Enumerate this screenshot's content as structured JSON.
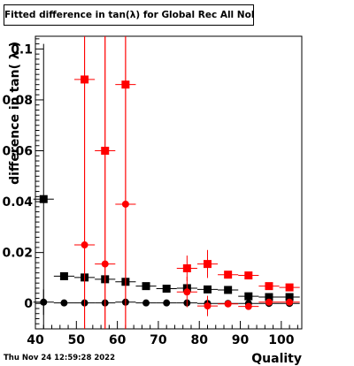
{
  "chart_data": {
    "type": "scatter",
    "title": "Fitted difference in tan(λ) for Global Rec All NoHits",
    "xlabel": "Quality",
    "ylabel": "difference in tan( λ )",
    "xlim": [
      40,
      105
    ],
    "ylim": [
      -0.01,
      0.105
    ],
    "x_ticks": [
      "40",
      "50",
      "60",
      "70",
      "80",
      "90",
      "100"
    ],
    "y_ticks": [
      "0",
      "0.02",
      "0.04",
      "0.06",
      "0.08",
      "0.1"
    ],
    "grid": false,
    "legend": "none",
    "series": [
      {
        "color": "#000000",
        "marker": "square",
        "x": [
          42,
          47,
          52,
          57,
          62,
          67,
          72,
          77,
          82,
          87,
          92,
          97,
          102
        ],
        "y": [
          0.041,
          0.0107,
          0.0102,
          0.0095,
          0.0085,
          0.0068,
          0.0058,
          0.006,
          0.0055,
          0.0053,
          0.0028,
          0.0025,
          0.0025
        ],
        "yerr": [
          0.061,
          0.0,
          0.0,
          0.0,
          0.0,
          0.0,
          0.0,
          0.0,
          0.0,
          0.0,
          0.0,
          0.0,
          0.0
        ]
      },
      {
        "color": "#000000",
        "marker": "circle",
        "x": [
          42,
          47,
          52,
          57,
          62,
          67,
          72,
          77,
          82,
          87,
          92,
          97,
          102
        ],
        "y": [
          0.0005,
          0.0002,
          0.0002,
          0.0002,
          0.0005,
          0.0002,
          0.0002,
          0.0002,
          0.0,
          0.0,
          0.0,
          0.0,
          0.0
        ],
        "yerr": [
          0.005,
          0.0,
          0.0,
          0.0,
          0.0,
          0.0,
          0.0,
          0.0,
          0.0,
          0.0,
          0.0,
          0.0,
          0.0
        ]
      },
      {
        "color": "#ff0000",
        "marker": "square",
        "x": [
          52,
          57,
          62,
          77,
          82,
          87,
          92,
          97,
          102
        ],
        "y": [
          0.088,
          0.06,
          0.086,
          0.0138,
          0.0155,
          0.0113,
          0.011,
          0.0068,
          0.0063
        ],
        "yerr": [
          0.1,
          0.1,
          0.1,
          0.005,
          0.0055,
          0.0,
          0.0,
          0.0,
          0.0
        ]
      },
      {
        "color": "#ff0000",
        "marker": "circle",
        "x": [
          52,
          57,
          62,
          77,
          82,
          87,
          92,
          97,
          102
        ],
        "y": [
          0.023,
          0.0155,
          0.039,
          0.0045,
          -0.001,
          -0.0002,
          -0.0012,
          0.0005,
          0.0005
        ],
        "yerr": [
          0.1,
          0.1,
          0.1,
          0.006,
          0.004,
          0.0,
          0.0,
          0.0,
          0.0
        ]
      }
    ]
  },
  "footer": {
    "timestamp": "Thu Nov 24 12:59:28 2022"
  }
}
